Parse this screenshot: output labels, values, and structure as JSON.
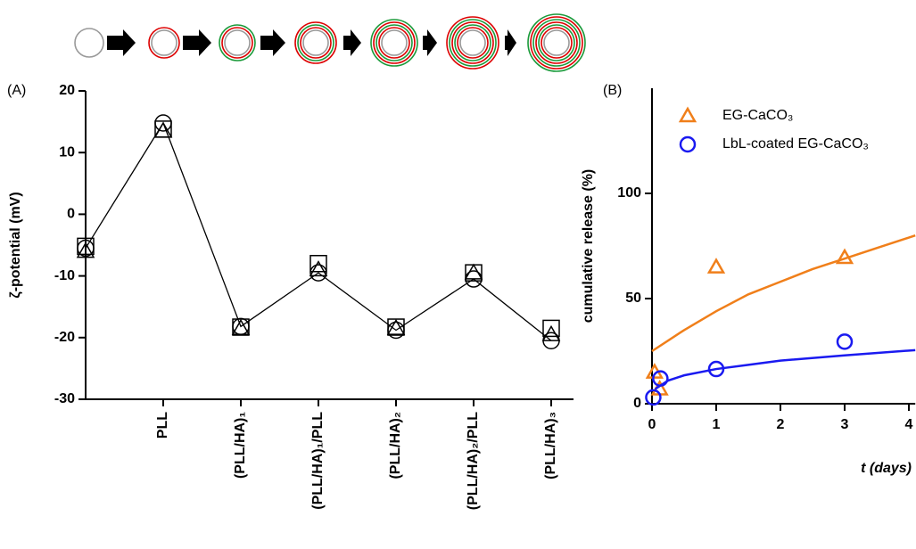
{
  "chart_data": [
    {
      "type": "line",
      "panel": "(A)",
      "y_label": "ζ-potential (mV)",
      "categories": [
        null,
        "PLL",
        "(PLL/HA)₁",
        "(PLL/HA)₁/PLL",
        "(PLL/HA)₂",
        "(PLL/HA)₂/PLL",
        "(PLL/HA)₃"
      ],
      "ylim": [
        -30,
        20
      ],
      "yticks": [
        -30,
        -20,
        -10,
        0,
        10,
        20
      ],
      "series": [
        {
          "marker": "circle",
          "color": "#000000",
          "line": true,
          "values": [
            -5.5,
            14.8,
            -18.2,
            -9.5,
            -18.8,
            -10.5,
            -20.5
          ]
        },
        {
          "marker": "triangle",
          "color": "#000000",
          "values": [
            -6,
            13.5,
            -18.5,
            -9,
            -18.5,
            -9.5,
            -19.5
          ]
        },
        {
          "marker": "square",
          "color": "#000000",
          "values": [
            -5.2,
            13.8,
            -18.3,
            -8,
            -18.3,
            -9.5,
            -18.5
          ]
        }
      ]
    },
    {
      "type": "scatter",
      "panel": "(B)",
      "y_label": "cumulative release (%)",
      "x_label": "t (days)",
      "xlim": [
        0,
        4.1
      ],
      "xticks": [
        0,
        1,
        2,
        3,
        4
      ],
      "ylim": [
        0,
        150
      ],
      "yticks": [
        0,
        50,
        100
      ],
      "series": [
        {
          "name": "EG-CaCO₃",
          "marker": "triangle",
          "color": "#f07f1a",
          "x": [
            0.04,
            0.12,
            1,
            3
          ],
          "values": [
            15,
            7,
            65,
            69.5
          ],
          "fit": {
            "x": [
              0,
              0.5,
              1,
              1.5,
              2,
              2.5,
              3,
              3.5,
              4.1
            ],
            "values": [
              25,
              35,
              44,
              52,
              58,
              64,
              69,
              74,
              80
            ]
          }
        },
        {
          "name": "LbL-coated EG-CaCO₃",
          "marker": "circle",
          "color": "#1a1af0",
          "x": [
            0.02,
            0.13,
            1,
            3
          ],
          "values": [
            3,
            12,
            16.5,
            29.5
          ],
          "fit": {
            "x": [
              0.05,
              0.25,
              0.5,
              1,
              1.5,
              2,
              3,
              4.1
            ],
            "values": [
              7,
              11,
              13.5,
              16.5,
              18.5,
              20.5,
              23,
              25.5
            ]
          }
        }
      ]
    }
  ]
}
